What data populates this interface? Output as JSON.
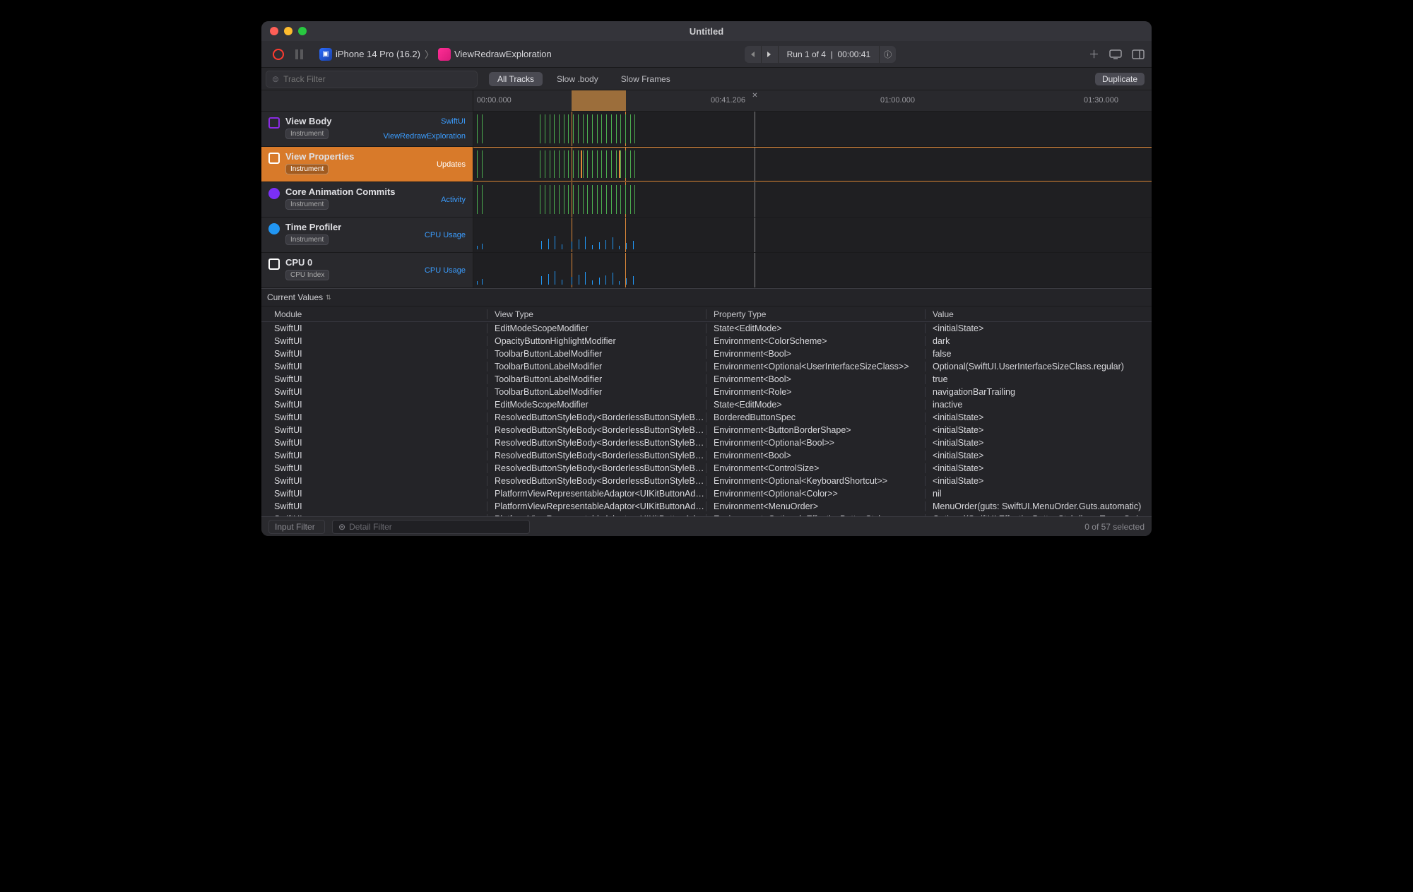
{
  "window": {
    "title": "Untitled"
  },
  "toolbar": {
    "device": "iPhone 14 Pro (16.2)",
    "target": "ViewRedrawExploration",
    "run_label": "Run 1 of 4",
    "run_time": "00:00:41"
  },
  "filter_row": {
    "track_filter_placeholder": "Track Filter",
    "tabs": [
      "All Tracks",
      "Slow .body",
      "Slow Frames"
    ],
    "active_tab_index": 0,
    "duplicate_label": "Duplicate"
  },
  "timeline": {
    "ticks": [
      {
        "label": "00:00.000",
        "pos_pct": 0.5
      },
      {
        "label": "00:41.206",
        "pos_pct": 35
      },
      {
        "label": "01:00.000",
        "pos_pct": 60
      },
      {
        "label": "01:30.000",
        "pos_pct": 90
      }
    ],
    "selection": {
      "start_pct": 14.5,
      "end_pct": 22.5
    },
    "playhead_pct": 41.5,
    "selection_color": "#b07a3e",
    "marker_border_color": "#e08a3a",
    "tick_colors": {
      "green": "#4caf50",
      "blue": "#2196f3",
      "orange": "#e08a3a"
    }
  },
  "tracks": [
    {
      "title": "View Body",
      "badge": "Instrument",
      "icon": "viewbody",
      "right_labels": [
        "SwiftUI",
        "ViewRedrawExploration"
      ],
      "selected": false,
      "lane_style": "green-ticks"
    },
    {
      "title": "View Properties",
      "badge": "Instrument",
      "icon": "viewprops",
      "right_labels": [
        "Updates"
      ],
      "selected": true,
      "lane_style": "green-orange-ticks"
    },
    {
      "title": "Core Animation Commits",
      "badge": "Instrument",
      "icon": "coreanimation",
      "right_labels": [
        "Activity"
      ],
      "selected": false,
      "lane_style": "green-ticks"
    },
    {
      "title": "Time Profiler",
      "badge": "Instrument",
      "icon": "timeprofiler",
      "right_labels": [
        "CPU Usage"
      ],
      "selected": false,
      "lane_style": "blue-small"
    },
    {
      "title": "CPU 0",
      "badge": "CPU Index",
      "icon": "cpu",
      "right_labels": [
        "CPU Usage"
      ],
      "selected": false,
      "lane_style": "blue-small"
    }
  ],
  "detail": {
    "dropdown_label": "Current Values",
    "columns": [
      "Module",
      "View Type",
      "Property Type",
      "Value"
    ],
    "rows": [
      [
        "SwiftUI",
        "EditModeScopeModifier",
        "State<EditMode>",
        "<initialState>"
      ],
      [
        "SwiftUI",
        "OpacityButtonHighlightModifier",
        "Environment<ColorScheme>",
        "dark"
      ],
      [
        "SwiftUI",
        "ToolbarButtonLabelModifier",
        "Environment<Bool>",
        "false"
      ],
      [
        "SwiftUI",
        "ToolbarButtonLabelModifier",
        "Environment<Optional<UserInterfaceSizeClass>>",
        "Optional(SwiftUI.UserInterfaceSizeClass.regular)"
      ],
      [
        "SwiftUI",
        "ToolbarButtonLabelModifier",
        "Environment<Bool>",
        "true"
      ],
      [
        "SwiftUI",
        "ToolbarButtonLabelModifier",
        "Environment<Role>",
        "navigationBarTrailing"
      ],
      [
        "SwiftUI",
        "EditModeScopeModifier",
        "State<EditMode>",
        "inactive"
      ],
      [
        "SwiftUI",
        "ResolvedButtonStyleBody<BorderlessButtonStyleBas...",
        "BorderedButtonSpec",
        "<initialState>"
      ],
      [
        "SwiftUI",
        "ResolvedButtonStyleBody<BorderlessButtonStyleBas...",
        "Environment<ButtonBorderShape>",
        "<initialState>"
      ],
      [
        "SwiftUI",
        "ResolvedButtonStyleBody<BorderlessButtonStyleBas...",
        "Environment<Optional<Bool>>",
        "<initialState>"
      ],
      [
        "SwiftUI",
        "ResolvedButtonStyleBody<BorderlessButtonStyleBas...",
        "Environment<Bool>",
        "<initialState>"
      ],
      [
        "SwiftUI",
        "ResolvedButtonStyleBody<BorderlessButtonStyleBas...",
        "Environment<ControlSize>",
        "<initialState>"
      ],
      [
        "SwiftUI",
        "ResolvedButtonStyleBody<BorderlessButtonStyleBas...",
        "Environment<Optional<KeyboardShortcut>>",
        "<initialState>"
      ],
      [
        "SwiftUI",
        "PlatformViewRepresentableAdaptor<UIKitButtonAdap...",
        "Environment<Optional<Color>>",
        "nil"
      ],
      [
        "SwiftUI",
        "PlatformViewRepresentableAdaptor<UIKitButtonAdap...",
        "Environment<MenuOrder>",
        "MenuOrder(guts: SwiftUI.MenuOrder.Guts.automatic)"
      ],
      [
        "SwiftUI",
        "PlatformViewRepresentableAdaptor<UIKitButtonAdap...",
        "Environment<Optional<EffectiveButtonStyle>>",
        "Optional(SwiftUI.EffectiveButtonStyle(baseType: Swi"
      ]
    ]
  },
  "footer": {
    "input_filter_placeholder": "Input Filter",
    "detail_filter_placeholder": "Detail Filter",
    "status": "0 of 57 selected"
  }
}
